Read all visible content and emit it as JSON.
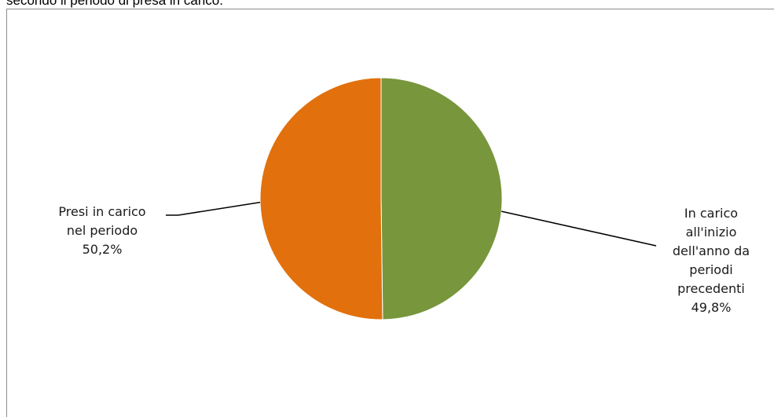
{
  "heading": "secondo il periodo di presa in carico.",
  "chart_data": {
    "type": "pie",
    "title": "",
    "slices": [
      {
        "label": "In carico all'inizio dell'anno da periodi precedenti",
        "label_lines": [
          "In carico",
          "all'inizio",
          "dell'anno da",
          "periodi",
          "precedenti"
        ],
        "value": 49.8,
        "value_label": "49,8%",
        "color": "#78963c"
      },
      {
        "label": "Presi in carico nel periodo",
        "label_lines": [
          "Presi in carico",
          "nel periodo"
        ],
        "value": 50.2,
        "value_label": "50,2%",
        "color": "#e2700c"
      }
    ],
    "legend": false
  }
}
